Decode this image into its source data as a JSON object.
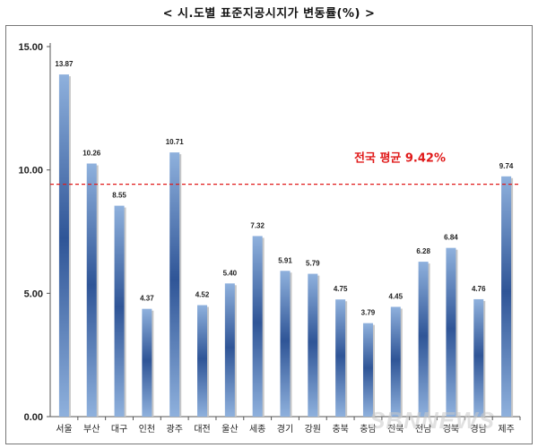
{
  "header": {
    "title": "< 시.도별 표준지공시지가 변동률(%) >"
  },
  "colors": {
    "bar_dark": "#2f5597",
    "bar_light": "#8fb1dd",
    "average_line": "#e01a1a"
  },
  "watermark": "SBNNEWS",
  "chart_data": {
    "type": "bar",
    "title": "< 시.도별 표준지공시지가 변동률(%) >",
    "categories": [
      "서울",
      "부산",
      "대구",
      "인천",
      "광주",
      "대전",
      "울산",
      "세종",
      "경기",
      "강원",
      "충북",
      "충남",
      "전북",
      "전남",
      "경북",
      "경남",
      "제주"
    ],
    "values": [
      13.87,
      10.26,
      8.55,
      4.37,
      10.71,
      4.52,
      5.4,
      7.32,
      5.91,
      5.79,
      4.75,
      3.79,
      4.45,
      6.28,
      6.84,
      4.76,
      9.74
    ],
    "value_labels": [
      "13.87",
      "10.26",
      "8.55",
      "4.37",
      "10.71",
      "4.52",
      "5.40",
      "7.32",
      "5.91",
      "5.79",
      "4.75",
      "3.79",
      "4.45",
      "6.28",
      "6.84",
      "4.76",
      "9.74"
    ],
    "ylim": [
      0,
      15
    ],
    "yticks": [
      0,
      5,
      10,
      15
    ],
    "ytick_labels": [
      "0.00",
      "5.00",
      "10.00",
      "15.00"
    ],
    "reference_line": {
      "value": 9.42,
      "label": "전국 평균 9.42%",
      "style": "dashed"
    },
    "grid": false,
    "legend": "none"
  }
}
